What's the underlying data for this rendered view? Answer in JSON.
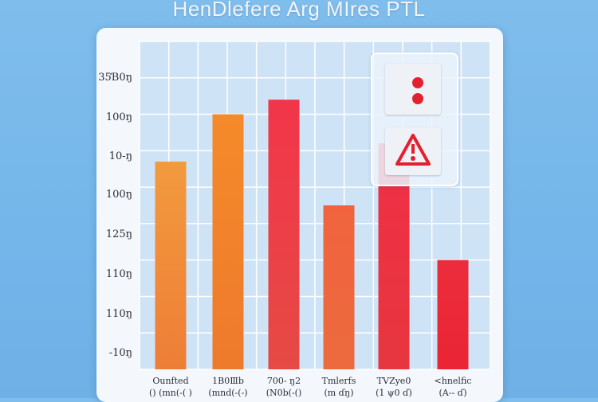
{
  "title": "HenDlefere  Arg MIres PTL",
  "legend_icons": [
    "dots-icon",
    "warning-icon"
  ],
  "colors": {
    "bar_top": [
      "#f29a3e",
      "#f58a2a",
      "#f2354a",
      "#f0633e",
      "#f02f45",
      "#ec2c3c"
    ],
    "bar_bottom": [
      "#ee7e36",
      "#ee7a2c",
      "#e64a44",
      "#ed6a3e",
      "#e7363f",
      "#ea2535"
    ],
    "danger": "#e4202f"
  },
  "chart_data": {
    "type": "bar",
    "title": "HenDlefere  Arg MIres PTL",
    "y_tick_labels": [
      "35Ɓ0ŋ",
      "100ŋ",
      "10-ŋ",
      "100ŋ",
      "125ŋ",
      "110ŋ",
      "110ŋ",
      "-10ŋ"
    ],
    "categories": [
      "Ounfted () (mn(-( )",
      "1B0Ⅲb (mnd(-(-)",
      "700- ŋ2 (N0b(-()",
      "Tmlerfs (m ɗŋ)",
      "TVZye0 (1 ψ0 ɗ)",
      "<hnelfic (A-- ɗ)"
    ],
    "values": [
      5.7,
      7.0,
      7.4,
      4.5,
      6.2,
      3.0
    ],
    "ylim": [
      0,
      9
    ],
    "grid": true,
    "legend": "top-right"
  }
}
